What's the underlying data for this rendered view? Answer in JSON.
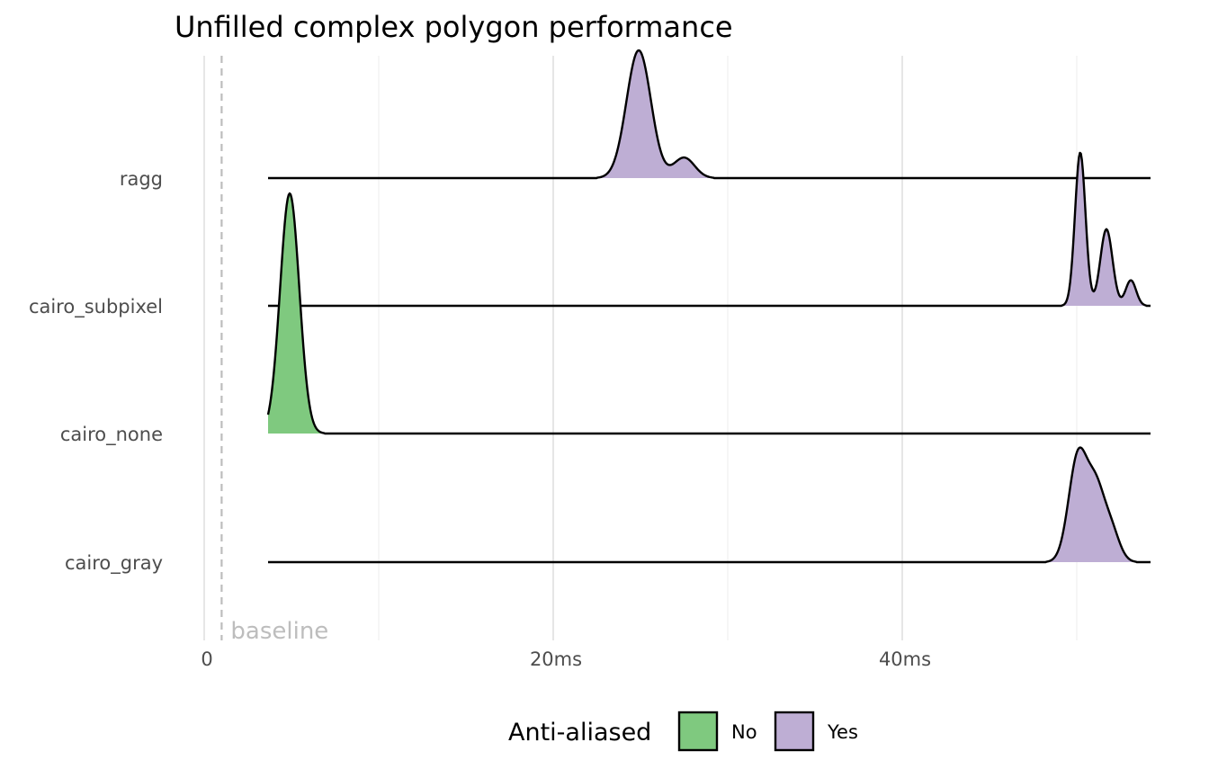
{
  "chart_data": {
    "type": "ridgeline",
    "title": "Unfilled complex polygon performance",
    "xlabel": "",
    "ylabel": "",
    "xlim": [
      0,
      54
    ],
    "x_ticks": [
      {
        "value": 0,
        "label": "0"
      },
      {
        "value": 20,
        "label": "20ms"
      },
      {
        "value": 40,
        "label": "40ms"
      }
    ],
    "grid": true,
    "baseline": {
      "value": 1,
      "label": "baseline",
      "style": "dashed",
      "color": "#bdbdbd"
    },
    "legend": {
      "title": "Anti-aliased",
      "placement": "bottom",
      "entries": [
        {
          "label": "No",
          "color": "#7fc97f"
        },
        {
          "label": "Yes",
          "color": "#beaed4"
        }
      ]
    },
    "categories": [
      "cairo_gray",
      "cairo_none",
      "cairo_subpixel",
      "ragg"
    ],
    "series": [
      {
        "category": "ragg",
        "anti_aliased": "Yes",
        "peaks": [
          {
            "center": 24.9,
            "sd": 0.7,
            "height": 1.0
          },
          {
            "center": 27.5,
            "sd": 0.6,
            "height": 0.16
          }
        ]
      },
      {
        "category": "cairo_subpixel",
        "anti_aliased": "Yes",
        "peaks": [
          {
            "center": 50.2,
            "sd": 0.3,
            "height": 1.2
          },
          {
            "center": 51.7,
            "sd": 0.35,
            "height": 0.6
          },
          {
            "center": 53.1,
            "sd": 0.3,
            "height": 0.2
          }
        ]
      },
      {
        "category": "cairo_none",
        "anti_aliased": "No",
        "peaks": [
          {
            "center": 4.9,
            "sd": 0.55,
            "height": 1.88
          }
        ]
      },
      {
        "category": "cairo_gray",
        "anti_aliased": "Yes",
        "peaks": [
          {
            "center": 50.1,
            "sd": 0.55,
            "height": 0.85
          },
          {
            "center": 51.1,
            "sd": 0.45,
            "height": 0.45
          },
          {
            "center": 51.9,
            "sd": 0.5,
            "height": 0.28
          }
        ]
      }
    ]
  }
}
